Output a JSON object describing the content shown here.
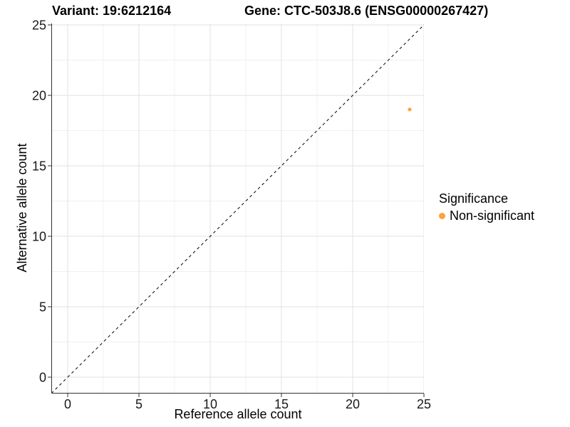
{
  "titles": {
    "variant": "Variant: 19:6212164",
    "gene": "Gene: CTC-503J8.6 (ENSG00000267427)"
  },
  "chart_data": {
    "type": "scatter",
    "title": "Variant: 19:6212164  /  Gene: CTC-503J8.6 (ENSG00000267427)",
    "xlabel": "Reference allele count",
    "ylabel": "Alternative allele count",
    "x_ticks": [
      0,
      5,
      10,
      15,
      20,
      25
    ],
    "y_ticks": [
      0,
      5,
      10,
      15,
      20,
      25
    ],
    "xlim": [
      -1.1,
      25
    ],
    "ylim": [
      -1.1,
      25.2
    ],
    "grid": "on",
    "legend_position": "right",
    "points": [
      {
        "x": 24,
        "y": 19,
        "series": "Non-significant"
      }
    ],
    "reference_line": {
      "type": "identity",
      "equation": "y = x",
      "style": "dashed",
      "color": "#000000"
    }
  },
  "legend": {
    "title": "Significance",
    "items": [
      {
        "label": "Non-significant",
        "color": "#FCA33C"
      }
    ]
  },
  "colors": {
    "point": "#FCA33C",
    "grid_major": "#E2E2E2",
    "grid_minor": "#F0F0F0",
    "axis_line": "#333333",
    "tick_text": "#1A1A1A",
    "dashed_line": "#000000",
    "background": "#FFFFFF"
  }
}
